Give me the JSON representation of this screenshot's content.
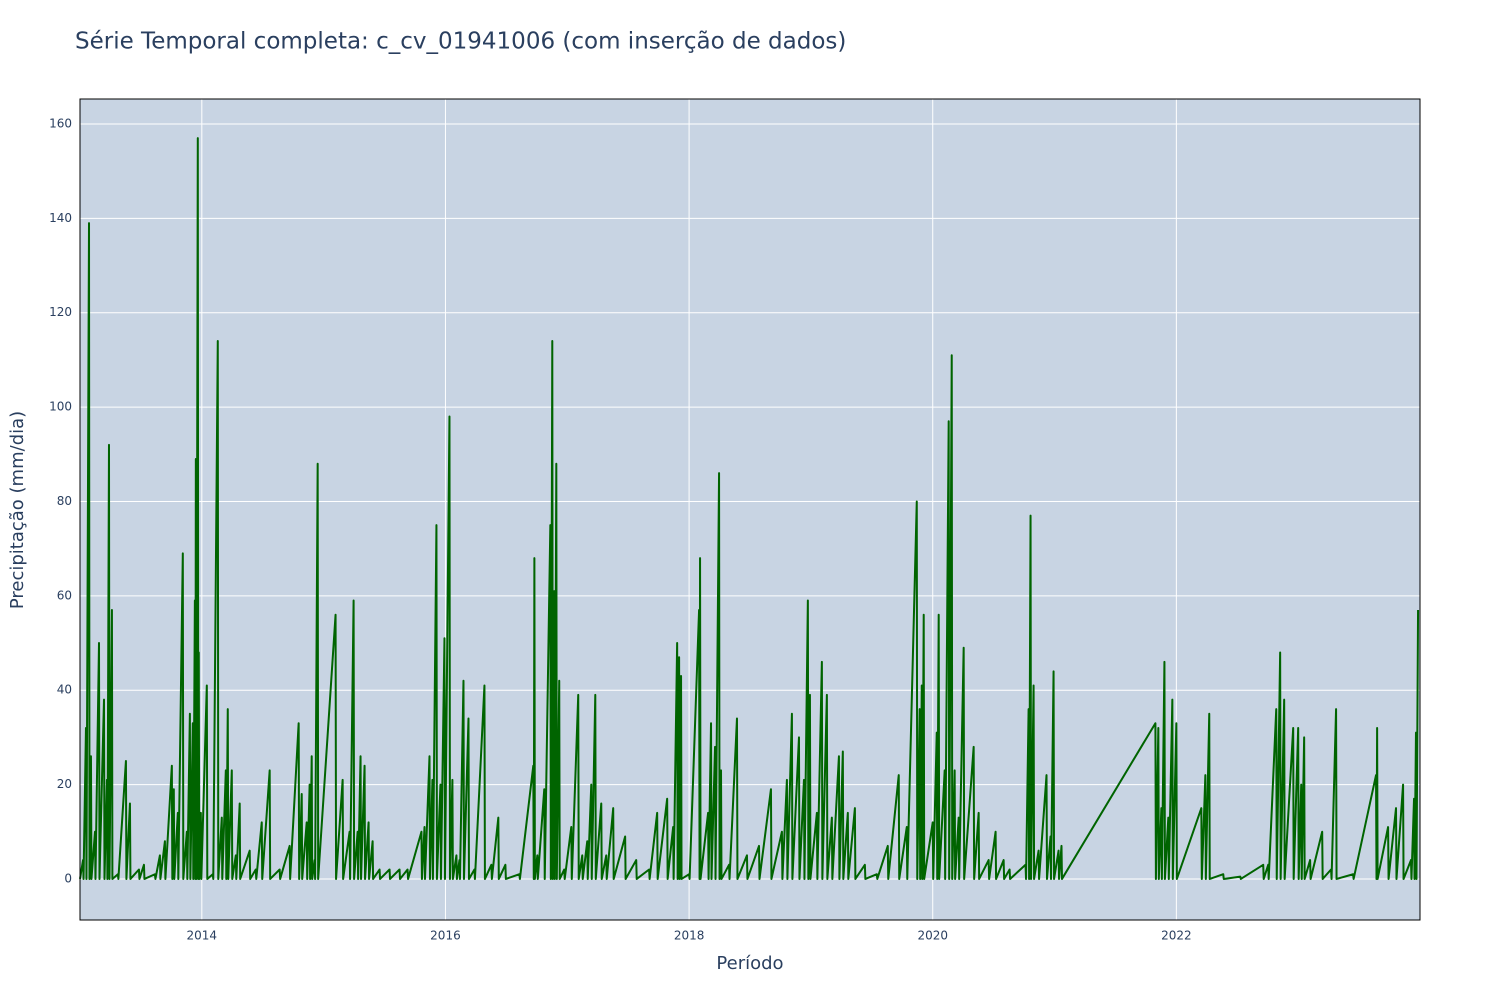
{
  "chart_data": {
    "type": "line",
    "title": "Série Temporal completa: c_cv_01941006 (com inserção de dados)",
    "x_label": "Período",
    "y_label": "Precipitação (mm/dia)",
    "color": "#006400",
    "grid": true,
    "background": "#c8d4e3",
    "xlim": [
      2013.0,
      2024.0
    ],
    "xticks": [
      2014,
      2016,
      2018,
      2020,
      2022
    ],
    "ylim": [
      -8.7,
      165.3
    ],
    "yticks": [
      0,
      20,
      40,
      60,
      80,
      100,
      120,
      140,
      160
    ],
    "x": [
      2013.0,
      2013.025,
      2013.029,
      2013.049,
      2013.053,
      2013.074,
      2013.078,
      2013.09,
      2013.094,
      2013.123,
      2013.127,
      2013.156,
      2013.16,
      2013.197,
      2013.201,
      2013.221,
      2013.225,
      2013.238,
      2013.242,
      2013.262,
      2013.266,
      2013.311,
      2013.315,
      2013.377,
      2013.381,
      2013.41,
      2013.414,
      2013.484,
      2013.488,
      2013.525,
      2013.529,
      2013.615,
      2013.619,
      2013.656,
      2013.66,
      2013.697,
      2013.701,
      2013.754,
      2013.758,
      2013.77,
      2013.774,
      2013.803,
      2013.807,
      2013.844,
      2013.848,
      2013.877,
      2013.881,
      2013.902,
      2013.906,
      2013.926,
      2013.93,
      2013.943,
      2013.947,
      2013.951,
      2013.955,
      2013.967,
      2013.971,
      2013.975,
      2013.979,
      2013.992,
      2013.996,
      2014.041,
      2014.045,
      2014.09,
      2014.094,
      2014.131,
      2014.135,
      2014.164,
      2014.168,
      2014.197,
      2014.201,
      2014.213,
      2014.217,
      2014.246,
      2014.25,
      2014.279,
      2014.283,
      2014.311,
      2014.315,
      2014.393,
      2014.397,
      2014.443,
      2014.447,
      2014.492,
      2014.496,
      2014.557,
      2014.561,
      2014.639,
      2014.643,
      2014.721,
      2014.725,
      2014.795,
      2014.799,
      2014.82,
      2014.824,
      2014.861,
      2014.865,
      2014.885,
      2014.889,
      2014.902,
      2014.906,
      2014.926,
      2014.93,
      2014.951,
      2014.955,
      2015.098,
      2015.102,
      2015.156,
      2015.16,
      2015.213,
      2015.217,
      2015.246,
      2015.25,
      2015.279,
      2015.283,
      2015.303,
      2015.307,
      2015.336,
      2015.34,
      2015.369,
      2015.373,
      2015.402,
      2015.406,
      2015.459,
      2015.463,
      2015.541,
      2015.545,
      2015.623,
      2015.627,
      2015.689,
      2015.693,
      2015.803,
      2015.807,
      2015.828,
      2015.832,
      2015.869,
      2015.873,
      2015.893,
      2015.897,
      2015.926,
      2015.93,
      2015.959,
      2015.963,
      2015.992,
      2015.996,
      2016.033,
      2016.037,
      2016.057,
      2016.061,
      2016.09,
      2016.094,
      2016.115,
      2016.119,
      2016.148,
      2016.152,
      2016.189,
      2016.193,
      2016.238,
      2016.242,
      2016.32,
      2016.324,
      2016.377,
      2016.381,
      2016.434,
      2016.438,
      2016.492,
      2016.496,
      2016.607,
      2016.611,
      2016.721,
      2016.725,
      2016.73,
      2016.734,
      2016.754,
      2016.758,
      2016.811,
      2016.815,
      2016.861,
      2016.865,
      2016.877,
      2016.881,
      2016.893,
      2016.897,
      2016.91,
      2016.914,
      2016.934,
      2016.938,
      2016.975,
      2016.979,
      2017.033,
      2017.037,
      2017.09,
      2017.094,
      2017.123,
      2017.127,
      2017.164,
      2017.168,
      2017.197,
      2017.201,
      2017.23,
      2017.234,
      2017.279,
      2017.283,
      2017.32,
      2017.324,
      2017.377,
      2017.381,
      2017.475,
      2017.479,
      2017.566,
      2017.57,
      2017.672,
      2017.676,
      2017.738,
      2017.742,
      2017.82,
      2017.824,
      2017.869,
      2017.873,
      2017.902,
      2017.906,
      2017.918,
      2017.922,
      2017.934,
      2017.938,
      2018.0,
      2018.004,
      2018.082,
      2018.086,
      2018.09,
      2018.094,
      2018.156,
      2018.16,
      2018.18,
      2018.184,
      2018.213,
      2018.217,
      2018.246,
      2018.25,
      2018.262,
      2018.266,
      2018.328,
      2018.332,
      2018.393,
      2018.397,
      2018.475,
      2018.479,
      2018.574,
      2018.578,
      2018.672,
      2018.676,
      2018.762,
      2018.766,
      2018.803,
      2018.807,
      2018.844,
      2018.848,
      2018.902,
      2018.906,
      2018.943,
      2018.947,
      2018.975,
      2018.979,
      2018.992,
      2018.996,
      2019.049,
      2019.053,
      2019.09,
      2019.094,
      2019.131,
      2019.135,
      2019.172,
      2019.176,
      2019.23,
      2019.234,
      2019.262,
      2019.266,
      2019.303,
      2019.307,
      2019.361,
      2019.365,
      2019.443,
      2019.447,
      2019.541,
      2019.545,
      2019.631,
      2019.635,
      2019.721,
      2019.725,
      2019.787,
      2019.791,
      2019.869,
      2019.873,
      2019.893,
      2019.897,
      2019.91,
      2019.914,
      2019.926,
      2019.93,
      2020.0,
      2020.004,
      2020.033,
      2020.037,
      2020.049,
      2020.053,
      2020.098,
      2020.102,
      2020.131,
      2020.135,
      2020.156,
      2020.16,
      2020.18,
      2020.184,
      2020.213,
      2020.217,
      2020.254,
      2020.258,
      2020.336,
      2020.34,
      2020.377,
      2020.381,
      2020.459,
      2020.463,
      2020.516,
      2020.52,
      2020.582,
      2020.586,
      2020.631,
      2020.635,
      2020.762,
      2020.766,
      2020.787,
      2020.791,
      2020.803,
      2020.807,
      2020.828,
      2020.832,
      2020.869,
      2020.873,
      2020.934,
      2020.938,
      2020.967,
      2020.971,
      2020.992,
      2020.996,
      2021.033,
      2021.037,
      2021.057,
      2021.061,
      2021.828,
      2021.832,
      2021.852,
      2021.856,
      2021.877,
      2021.881,
      2021.902,
      2021.906,
      2021.934,
      2021.938,
      2021.967,
      2021.971,
      2022.0,
      2022.004,
      2022.205,
      2022.209,
      2022.238,
      2022.242,
      2022.27,
      2022.274,
      2022.385,
      2022.389,
      2022.525,
      2022.529,
      2022.713,
      2022.717,
      2022.754,
      2022.758,
      2022.82,
      2022.824,
      2022.852,
      2022.856,
      2022.885,
      2022.889,
      2022.959,
      2022.963,
      2023.0,
      2023.004,
      2023.025,
      2023.029,
      2023.049,
      2023.053,
      2023.098,
      2023.102,
      2023.197,
      2023.201,
      2023.27,
      2023.274,
      2023.311,
      2023.315,
      2023.451,
      2023.455,
      2023.639,
      2023.643,
      2023.648,
      2023.652,
      2023.738,
      2023.742,
      2023.803,
      2023.807,
      2023.861,
      2023.865,
      2023.926,
      2023.93,
      2023.951,
      2023.955,
      2023.967,
      2023.971,
      2023.984
    ],
    "values": [
      0,
      4,
      0,
      32,
      0,
      139,
      0,
      26,
      0,
      10,
      0,
      50,
      0,
      38,
      0,
      21,
      0,
      92,
      0,
      57,
      0,
      1,
      0,
      25,
      0,
      16,
      0,
      2,
      0,
      3,
      0,
      1,
      0,
      5,
      0,
      8,
      0,
      24,
      0,
      19,
      0,
      14,
      0,
      69,
      0,
      10,
      0,
      35,
      0,
      33,
      0,
      59,
      0,
      89,
      0,
      157,
      0,
      48,
      0,
      14,
      0,
      41,
      0,
      1,
      0,
      114,
      0,
      13,
      0,
      23,
      0,
      36,
      0,
      23,
      0,
      5,
      0,
      16,
      0,
      6,
      0,
      2,
      0,
      12,
      0,
      23,
      0,
      2,
      0,
      7,
      0,
      33,
      0,
      18,
      0,
      12,
      0,
      20,
      0,
      26,
      0,
      4,
      0,
      88,
      0,
      56,
      0,
      21,
      0,
      10,
      0,
      59,
      0,
      10,
      0,
      26,
      0,
      24,
      0,
      12,
      0,
      8,
      0,
      2,
      0,
      2,
      0,
      2,
      0,
      2,
      0,
      10,
      0,
      11,
      0,
      26,
      0,
      21,
      0,
      75,
      0,
      20,
      0,
      51,
      0,
      98,
      0,
      21,
      0,
      5,
      0,
      4,
      0,
      42,
      0,
      34,
      0,
      2,
      0,
      41,
      0,
      3,
      0,
      13,
      0,
      3,
      0,
      1,
      0,
      24,
      0,
      68,
      0,
      5,
      0,
      19,
      0,
      75,
      0,
      114,
      0,
      61,
      0,
      88,
      0,
      42,
      0,
      2,
      0,
      11,
      0,
      39,
      0,
      5,
      0,
      8,
      0,
      20,
      0,
      39,
      0,
      16,
      0,
      5,
      0,
      15,
      0,
      9,
      0,
      4,
      0,
      2,
      0,
      14,
      0,
      17,
      0,
      11,
      0,
      50,
      0,
      47,
      0,
      43,
      0,
      1,
      0,
      57,
      0,
      68,
      0,
      14,
      0,
      33,
      0,
      28,
      0,
      86,
      0,
      23,
      0,
      3,
      0,
      34,
      0,
      5,
      0,
      7,
      0,
      19,
      0,
      10,
      0,
      21,
      0,
      35,
      0,
      30,
      0,
      21,
      0,
      59,
      0,
      39,
      0,
      14,
      0,
      46,
      0,
      39,
      0,
      13,
      0,
      26,
      0,
      27,
      0,
      14,
      0,
      15,
      0,
      3,
      0,
      1,
      0,
      7,
      0,
      22,
      0,
      11,
      0,
      80,
      0,
      36,
      0,
      41,
      0,
      56,
      0,
      12,
      0,
      31,
      0,
      56,
      0,
      23,
      0,
      97,
      0,
      111,
      0,
      23,
      0,
      13,
      0,
      49,
      0,
      28,
      0,
      14,
      0,
      4,
      0,
      10,
      0,
      4,
      0,
      2,
      0,
      3,
      0,
      36,
      0,
      77,
      0,
      41,
      0,
      6,
      0,
      22,
      0,
      9,
      0,
      44,
      0,
      6,
      0,
      7,
      0,
      33,
      0,
      32,
      0,
      15,
      0,
      46,
      0,
      13,
      0,
      38,
      0,
      33,
      0,
      15,
      0,
      22,
      0,
      35,
      0,
      1,
      0,
      0.5,
      0,
      3,
      0,
      3,
      0,
      36,
      0,
      48,
      0,
      38,
      0,
      32,
      0,
      32,
      0,
      20,
      0,
      30,
      0,
      4,
      0,
      10,
      0,
      2,
      0,
      36,
      0,
      1,
      0,
      22,
      0,
      32,
      0,
      11,
      0,
      15,
      0,
      20,
      0,
      4,
      0,
      17,
      0,
      31,
      0,
      57
    ]
  }
}
